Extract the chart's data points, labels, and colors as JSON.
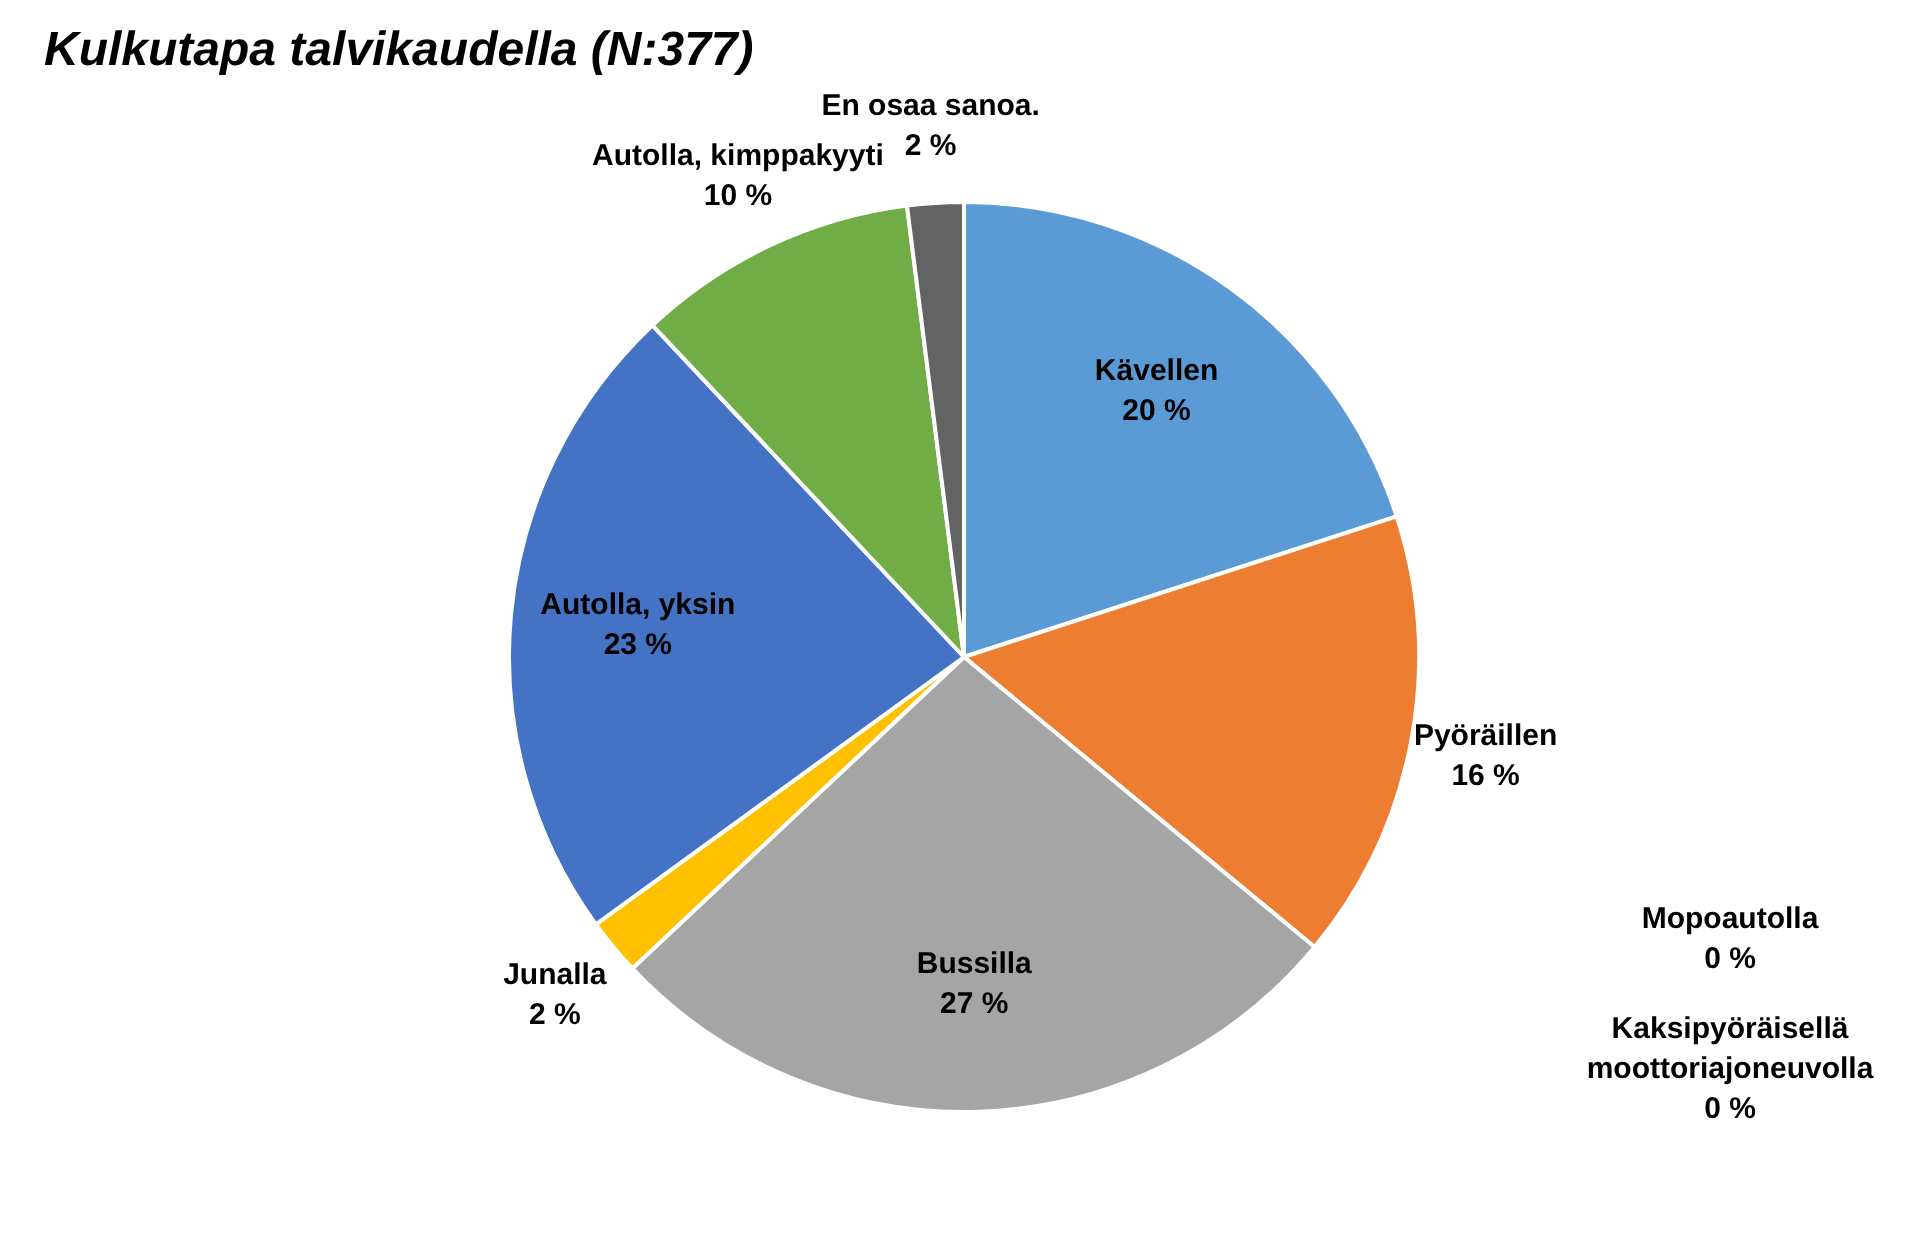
{
  "chart_data": {
    "type": "pie",
    "title": "Kulkutapa talvikaudella (N:377)",
    "categories": [
      "Kävellen",
      "Pyöräillen",
      "Mopoautolla",
      "Kaksipyöräisellä moottoriajoneuvolla",
      "Bussilla",
      "Junalla",
      "Autolla, yksin",
      "Autolla, kimppakyyti",
      "En osaa sanoa."
    ],
    "values": [
      20,
      16,
      0,
      0,
      27,
      2,
      23,
      10,
      2
    ],
    "value_labels": [
      "20 %",
      "16 %",
      "0 %",
      "0 %",
      "27 %",
      "2 %",
      "23 %",
      "10 %",
      "2 %"
    ],
    "colors": [
      "#5b9bd5",
      "#ed7d31",
      "#264478",
      "#9e480e",
      "#a5a5a5",
      "#ffc000",
      "#4472c4",
      "#70ad47",
      "#636363"
    ],
    "legend": false
  }
}
